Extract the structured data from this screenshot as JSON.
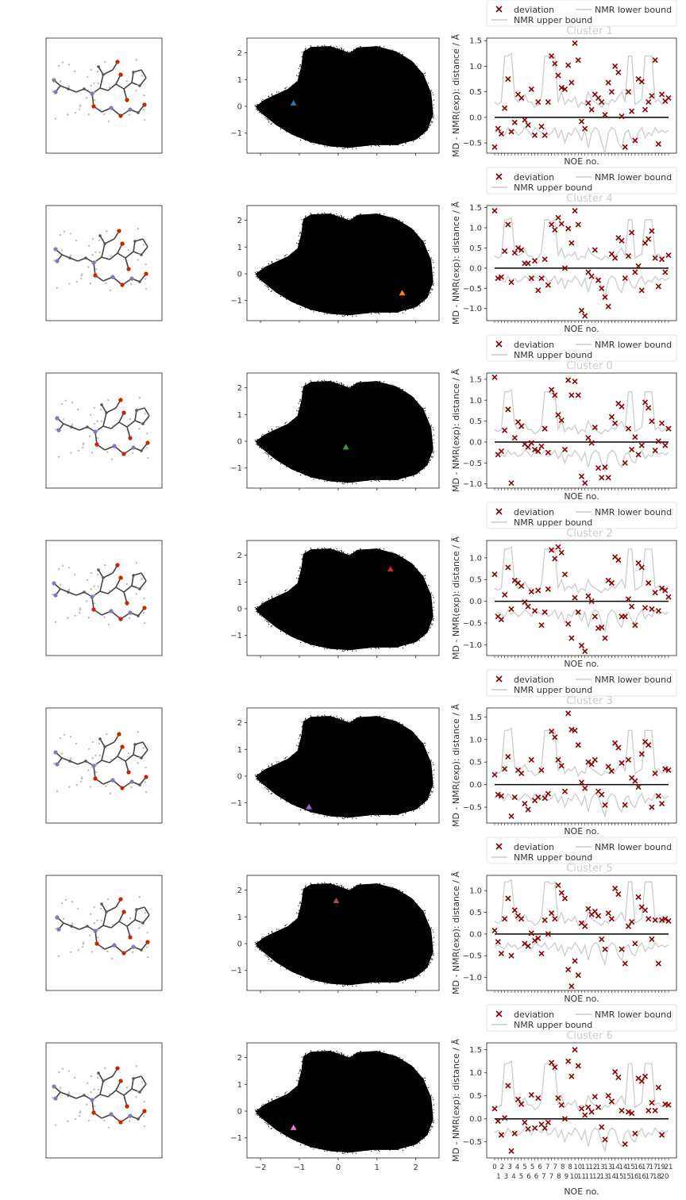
{
  "figure": {
    "legend": {
      "deviation": "deviation",
      "lower": "NMR lower bound",
      "upper": "NMR upper bound"
    },
    "noe_xlabel": "NOE no.",
    "noe_ylabel": "MD - NMR(exp): distance / Å",
    "noe_x_ticks_top": [
      "0",
      "2",
      "3",
      "4",
      "5",
      "5",
      "6",
      "7",
      "7",
      "8",
      "8",
      "10",
      "11",
      "12",
      "13",
      "13",
      "14",
      "14",
      "15",
      "16",
      "17",
      "17",
      "19",
      "21"
    ],
    "noe_x_ticks_bottom": [
      "1",
      "3",
      "4",
      "5",
      "6",
      "6",
      "7",
      "7",
      "8",
      "9",
      "10",
      "11",
      "11",
      "12",
      "13",
      "14",
      "15",
      "15",
      "16",
      "16",
      "17",
      "18",
      "20"
    ],
    "pca_x_ticks": [
      "−2",
      "−1",
      "0",
      "1",
      "2"
    ],
    "pca_y_ticks": [
      "2",
      "1",
      "0",
      "−1"
    ],
    "colors": {
      "deviation": "#8b0000",
      "bound": "#cccccc",
      "zero_line": "#000000",
      "density": "#000000",
      "atom_C": "#555555",
      "atom_N": "#7b7bbf",
      "atom_O": "#cc2200",
      "atom_H": "#bbbbbb"
    },
    "rows": [
      {
        "cluster_label": "Cluster 1",
        "marker_color": "#1f77b4",
        "marker": [
          -1.15,
          0.12
        ],
        "ylim": [
          -0.7,
          1.55
        ],
        "yticks": [
          "1.5",
          "1.0",
          "0.5",
          "0.0",
          "−0.5"
        ],
        "ytick_vals": [
          1.5,
          1.0,
          0.5,
          0.0,
          -0.5
        ]
      },
      {
        "cluster_label": "Cluster 4",
        "marker_color": "#ff7f0e",
        "marker": [
          1.65,
          -0.72
        ],
        "ylim": [
          -1.3,
          1.55
        ],
        "yticks": [
          "1.5",
          "1.0",
          "0.5",
          "0.0",
          "−0.5",
          "−1.0"
        ],
        "ytick_vals": [
          1.5,
          1.0,
          0.5,
          0.0,
          -0.5,
          -1.0
        ]
      },
      {
        "cluster_label": "Cluster 0",
        "marker_color": "#2ca02c",
        "marker": [
          0.2,
          -0.22
        ],
        "ylim": [
          -1.1,
          1.65
        ],
        "yticks": [
          "1.5",
          "1.0",
          "0.5",
          "0.0",
          "−0.5",
          "−1.0"
        ],
        "ytick_vals": [
          1.5,
          1.0,
          0.5,
          0.0,
          -0.5,
          -1.0
        ]
      },
      {
        "cluster_label": "Cluster 2",
        "marker_color": "#d62728",
        "marker": [
          1.35,
          1.48
        ],
        "ylim": [
          -1.25,
          1.4
        ],
        "yticks": [
          "1.0",
          "0.5",
          "0.0",
          "−0.5",
          "−1.0"
        ],
        "ytick_vals": [
          1.0,
          0.5,
          0.0,
          -0.5,
          -1.0
        ]
      },
      {
        "cluster_label": "Cluster 3",
        "marker_color": "#9467bd",
        "marker": [
          -0.75,
          -1.15
        ],
        "ylim": [
          -0.85,
          1.7
        ],
        "yticks": [
          "1.5",
          "1.0",
          "0.5",
          "0.0",
          "−0.5"
        ],
        "ytick_vals": [
          1.5,
          1.0,
          0.5,
          0.0,
          -0.5
        ]
      },
      {
        "cluster_label": "Cluster 5",
        "marker_color": "#8c564b",
        "marker": [
          -0.05,
          1.6
        ],
        "ylim": [
          -1.3,
          1.35
        ],
        "yticks": [
          "1.0",
          "0.5",
          "0.0",
          "−0.5",
          "−1.0"
        ],
        "ytick_vals": [
          1.0,
          0.5,
          0.0,
          -0.5,
          -1.0
        ]
      },
      {
        "cluster_label": "Cluster 6",
        "marker_color": "#e377c2",
        "marker": [
          -1.15,
          -0.62
        ],
        "ylim": [
          -0.85,
          1.65
        ],
        "yticks": [
          "1.5",
          "1.0",
          "0.5",
          "0.0",
          "−0.5"
        ],
        "ytick_vals": [
          1.5,
          1.0,
          0.5,
          0.0,
          -0.5
        ]
      }
    ]
  },
  "chart_data": [
    {
      "type": "scatter",
      "description_of": "PCA projection density (repeated in each row with one highlighted cluster centre)",
      "xlim": [
        -2.35,
        2.6
      ],
      "ylim": [
        -1.75,
        2.55
      ],
      "xticks": [
        -2,
        -1,
        0,
        1,
        2
      ],
      "yticks": [
        2,
        1,
        0,
        -1
      ],
      "highlighted_points": [
        {
          "name": "Cluster 1",
          "x": -1.15,
          "y": 0.12
        },
        {
          "name": "Cluster 4",
          "x": 1.65,
          "y": -0.72
        },
        {
          "name": "Cluster 0",
          "x": 0.2,
          "y": -0.22
        },
        {
          "name": "Cluster 2",
          "x": 1.35,
          "y": 1.48
        },
        {
          "name": "Cluster 3",
          "x": -0.75,
          "y": -1.15
        },
        {
          "name": "Cluster 5",
          "x": -0.05,
          "y": 1.6
        },
        {
          "name": "Cluster 6",
          "x": -1.15,
          "y": -0.62
        }
      ]
    },
    {
      "type": "scatter",
      "xlabel": "NOE no.",
      "ylabel": "MD - NMR(exp): distance / Å",
      "lower_bound": [
        -0.3,
        -0.25,
        -0.3,
        -0.35,
        -0.2,
        -0.3,
        -0.25,
        -0.35,
        -0.3,
        -0.2,
        -0.25,
        -0.35,
        -0.2,
        -0.25,
        -0.3,
        -0.2,
        -0.35,
        -0.3,
        -0.2,
        -0.4,
        -0.25,
        -0.5,
        -0.3,
        -0.35,
        -0.2,
        -0.3,
        -0.45,
        -0.25,
        -0.6,
        -0.3,
        -0.2,
        -0.25,
        -0.5,
        -0.7,
        -0.3,
        -0.2,
        -0.25,
        -0.5,
        -0.6,
        -0.3,
        -0.25,
        -0.45,
        -0.5,
        -0.3,
        -0.2,
        -0.4,
        -0.3,
        -0.35,
        -0.2,
        -0.3,
        -0.25,
        -0.3,
        -0.25
      ],
      "upper_bound": [
        0.3,
        0.25,
        0.3,
        1.2,
        1.2,
        1.25,
        0.4,
        0.3,
        0.35,
        0.45,
        0.3,
        0.3,
        0.2,
        0.25,
        0.4,
        1.2,
        1.2,
        1.15,
        1.2,
        0.3,
        0.5,
        0.25,
        0.35,
        0.3,
        0.4,
        0.2,
        0.3,
        0.25,
        0.5,
        0.35,
        0.3,
        0.25,
        0.2,
        0.3,
        0.25,
        0.35,
        0.3,
        0.4,
        0.5,
        0.3,
        1.2,
        1.2,
        0.25,
        0.3,
        0.35,
        1.2,
        1.2,
        1.2,
        0.3,
        0.35,
        0.25,
        0.3,
        0.35
      ],
      "series": [
        {
          "name": "Cluster 1",
          "values": [
            -0.58,
            -0.22,
            -0.32,
            0.18,
            0.75,
            -0.28,
            -0.1,
            0.45,
            0.38,
            -0.05,
            -0.15,
            0.55,
            -0.35,
            0.3,
            -0.18,
            -0.35,
            0.3,
            1.2,
            1.05,
            0.82,
            0.58,
            0.55,
            1.02,
            0.68,
            1.45,
            1.12,
            -0.08,
            -0.22,
            0.28,
            0.15,
            0.45,
            0.38,
            0.3,
            0.05,
            0.68,
            0.5,
            1.0,
            0.88,
            0.02,
            -0.58,
            0.5,
            0.12,
            -0.45,
            0.75,
            0.7,
            0.15,
            0.3,
            0.42,
            1.12,
            -0.52,
            0.45,
            0.32,
            0.38
          ]
        },
        {
          "name": "Cluster 4",
          "values": [
            1.42,
            -0.25,
            -0.22,
            0.42,
            1.08,
            -0.35,
            0.38,
            0.5,
            0.45,
            0.12,
            0.12,
            -0.25,
            0.18,
            -0.55,
            -0.25,
            0.22,
            -0.42,
            1.08,
            0.95,
            1.25,
            1.1,
            0.0,
            0.98,
            0.62,
            1.42,
            1.08,
            -1.05,
            -1.18,
            -0.1,
            -0.2,
            0.45,
            -0.3,
            -0.5,
            -0.72,
            -0.95,
            0.35,
            0.25,
            0.75,
            0.68,
            -0.25,
            0.3,
            0.88,
            -0.1,
            0.05,
            -0.55,
            0.62,
            0.72,
            0.92,
            0.25,
            -0.45,
            0.22,
            -0.1,
            0.32
          ]
        },
        {
          "name": "Cluster 0",
          "values": [
            1.55,
            -0.3,
            -0.22,
            0.28,
            0.78,
            -0.98,
            0.1,
            0.48,
            0.38,
            -0.05,
            -0.12,
            -0.02,
            -0.18,
            -0.22,
            -0.1,
            0.32,
            -0.25,
            1.25,
            1.12,
            0.65,
            0.52,
            -0.18,
            1.48,
            1.12,
            1.45,
            1.12,
            -0.82,
            -0.98,
            0.1,
            -0.02,
            0.35,
            -0.62,
            -0.85,
            -0.6,
            -0.85,
            0.6,
            0.45,
            0.92,
            0.85,
            -0.5,
            0.32,
            -0.18,
            0.12,
            -0.3,
            -0.08,
            0.95,
            0.82,
            0.5,
            -0.2,
            0.02,
            0.45,
            -0.08,
            0.32
          ]
        },
        {
          "name": "Cluster 2",
          "values": [
            0.62,
            -0.35,
            -0.42,
            0.15,
            0.78,
            -0.18,
            0.48,
            0.42,
            0.35,
            -0.02,
            -0.12,
            0.22,
            -0.22,
            0.25,
            -0.55,
            -0.25,
            0.28,
            1.18,
            0.98,
            1.25,
            1.12,
            0.62,
            -0.52,
            -0.85,
            0.08,
            -0.25,
            -1.02,
            -1.15,
            0.12,
            0.0,
            -0.35,
            -0.62,
            -0.6,
            -0.85,
            0.48,
            0.42,
            1.02,
            0.95,
            -0.35,
            -0.35,
            0.05,
            -0.12,
            -0.55,
            0.88,
            0.78,
            -0.15,
            0.42,
            -0.18,
            0.2,
            -0.22,
            0.3,
            0.25,
            0.1
          ]
        },
        {
          "name": "Cluster 3",
          "values": [
            0.22,
            -0.22,
            -0.25,
            0.35,
            0.62,
            -0.7,
            -0.28,
            0.32,
            0.25,
            -0.42,
            -0.55,
            0.55,
            -0.35,
            -0.28,
            0.32,
            -0.3,
            -0.2,
            1.18,
            1.05,
            0.55,
            0.42,
            -0.15,
            1.58,
            1.22,
            1.2,
            0.88,
            0.05,
            -0.08,
            0.5,
            0.45,
            0.55,
            -0.15,
            -0.22,
            -0.45,
            0.4,
            0.3,
            0.92,
            0.82,
            0.48,
            -0.45,
            0.55,
            0.15,
            0.08,
            -0.05,
            0.68,
            0.95,
            0.88,
            -0.5,
            0.25,
            -0.25,
            -0.42,
            0.35,
            0.32
          ]
        },
        {
          "name": "Cluster 5",
          "values": [
            0.08,
            -0.18,
            -0.45,
            0.35,
            0.82,
            -0.5,
            0.55,
            0.42,
            0.35,
            -0.22,
            -0.28,
            0.02,
            -0.15,
            -0.1,
            -0.45,
            0.32,
            0.0,
            0.48,
            0.35,
            1.12,
            0.95,
            0.82,
            -0.82,
            -1.2,
            -0.62,
            -0.95,
            0.25,
            0.18,
            0.58,
            0.45,
            0.52,
            0.42,
            -0.12,
            -0.35,
            0.48,
            0.35,
            1.05,
            0.92,
            -0.35,
            -0.68,
            0.18,
            0.28,
            -0.22,
            0.85,
            0.62,
            0.55,
            0.35,
            -0.12,
            0.32,
            -0.68,
            0.32,
            0.35,
            0.3
          ]
        },
        {
          "name": "Cluster 6",
          "values": [
            0.22,
            -0.05,
            -0.35,
            0.02,
            0.72,
            -0.7,
            -0.32,
            0.42,
            0.32,
            -0.08,
            -0.22,
            0.52,
            -0.2,
            0.45,
            -0.12,
            -0.2,
            -0.08,
            1.22,
            1.12,
            0.45,
            0.3,
            0.0,
            1.25,
            0.92,
            1.5,
            1.15,
            0.22,
            0.08,
            0.25,
            0.15,
            0.48,
            0.25,
            -0.18,
            -0.45,
            0.5,
            0.38,
            1.02,
            0.9,
            0.18,
            -0.55,
            0.15,
            0.12,
            -0.32,
            0.88,
            0.82,
            0.92,
            0.18,
            0.35,
            0.18,
            0.68,
            -0.35,
            0.32,
            0.3
          ]
        }
      ]
    }
  ]
}
